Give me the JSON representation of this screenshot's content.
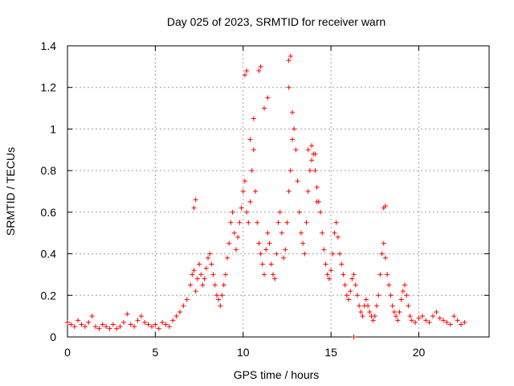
{
  "chart_data": {
    "type": "scatter",
    "title": "Day 025 of 2023, SRMTID for receiver warn",
    "xlabel": "GPS time / hours",
    "ylabel": "SRMTID / TECUs",
    "xlim": [
      0,
      24
    ],
    "ylim": [
      0,
      1.4
    ],
    "xticks": [
      0,
      5,
      10,
      15,
      20
    ],
    "xtick_labels": [
      "0",
      "5",
      "10",
      "15",
      "20"
    ],
    "yticks": [
      0,
      0.2,
      0.4,
      0.6,
      0.8,
      1.0,
      1.2,
      1.4
    ],
    "ytick_labels": [
      "0",
      "0.2",
      "0.4",
      "0.6",
      "0.8",
      "1",
      "1.2",
      "1.4"
    ],
    "grid": true,
    "marker": "+",
    "series": [
      {
        "name": "SRMTID",
        "color": "#ff0000",
        "x": [
          0.0,
          0.2,
          0.4,
          0.6,
          0.8,
          1.0,
          1.2,
          1.4,
          1.6,
          1.8,
          2.0,
          2.2,
          2.4,
          2.6,
          2.8,
          3.0,
          3.2,
          3.4,
          3.6,
          3.8,
          4.0,
          4.2,
          4.4,
          4.6,
          4.8,
          5.0,
          5.2,
          5.4,
          5.6,
          5.8,
          6.0,
          6.2,
          6.4,
          6.6,
          6.8,
          7.0,
          7.1,
          7.2,
          7.3,
          7.4,
          7.5,
          7.6,
          7.7,
          7.8,
          7.9,
          8.0,
          8.1,
          8.2,
          8.3,
          8.4,
          8.5,
          8.6,
          8.7,
          8.8,
          8.9,
          9.0,
          9.1,
          9.2,
          9.3,
          9.4,
          9.5,
          9.6,
          9.7,
          9.8,
          9.9,
          10.0,
          10.1,
          10.2,
          10.3,
          10.4,
          10.5,
          10.6,
          10.7,
          10.8,
          10.9,
          11.0,
          11.1,
          11.2,
          11.3,
          11.4,
          11.5,
          11.6,
          11.7,
          11.8,
          11.9,
          12.0,
          12.1,
          12.2,
          12.3,
          12.4,
          12.5,
          12.6,
          12.7,
          12.8,
          12.9,
          13.0,
          13.1,
          13.2,
          13.3,
          13.4,
          13.5,
          13.6,
          13.7,
          13.8,
          13.9,
          14.0,
          14.1,
          14.2,
          14.3,
          14.4,
          14.5,
          14.6,
          14.7,
          14.8,
          14.9,
          15.0,
          15.1,
          15.2,
          15.3,
          15.4,
          15.5,
          15.6,
          15.7,
          15.8,
          15.9,
          16.0,
          16.1,
          16.2,
          16.3,
          16.4,
          16.5,
          16.6,
          16.7,
          16.8,
          16.9,
          17.0,
          17.1,
          17.2,
          17.3,
          17.4,
          17.5,
          17.6,
          17.7,
          17.8,
          17.9,
          18.0,
          18.1,
          18.2,
          18.3,
          18.4,
          18.5,
          18.6,
          18.7,
          18.8,
          18.9,
          19.0,
          19.1,
          19.2,
          19.3,
          19.4,
          19.5,
          19.6,
          19.8,
          20.0,
          20.2,
          20.4,
          20.6,
          20.8,
          21.0,
          21.2,
          21.4,
          21.6,
          21.8,
          22.0,
          22.2,
          22.4,
          22.6,
          7.2,
          7.3,
          10.1,
          10.2,
          10.9,
          11.0,
          12.6,
          12.7,
          12.6,
          12.8,
          18.0,
          18.1,
          13.7,
          13.9,
          14.1,
          14.2,
          10.4,
          10.6,
          11.2,
          11.4,
          16.3
        ],
        "y": [
          0.07,
          0.06,
          0.05,
          0.08,
          0.06,
          0.05,
          0.07,
          0.1,
          0.05,
          0.04,
          0.06,
          0.05,
          0.04,
          0.06,
          0.04,
          0.05,
          0.07,
          0.11,
          0.06,
          0.05,
          0.08,
          0.1,
          0.07,
          0.06,
          0.05,
          0.06,
          0.04,
          0.07,
          0.06,
          0.05,
          0.08,
          0.1,
          0.12,
          0.15,
          0.18,
          0.25,
          0.3,
          0.32,
          0.22,
          0.28,
          0.35,
          0.3,
          0.25,
          0.28,
          0.33,
          0.38,
          0.4,
          0.35,
          0.3,
          0.25,
          0.2,
          0.18,
          0.15,
          0.2,
          0.25,
          0.3,
          0.38,
          0.45,
          0.55,
          0.6,
          0.5,
          0.42,
          0.48,
          0.55,
          0.62,
          0.7,
          0.75,
          0.6,
          0.55,
          0.65,
          0.8,
          0.9,
          0.7,
          0.55,
          0.45,
          0.4,
          0.35,
          0.3,
          0.42,
          0.5,
          0.45,
          0.35,
          0.3,
          0.28,
          0.4,
          0.55,
          0.6,
          0.5,
          0.38,
          0.42,
          0.55,
          0.7,
          0.8,
          0.95,
          1.0,
          0.9,
          0.75,
          0.6,
          0.5,
          0.45,
          0.4,
          0.55,
          0.7,
          0.8,
          0.85,
          0.88,
          0.8,
          0.72,
          0.65,
          0.6,
          0.5,
          0.42,
          0.35,
          0.3,
          0.28,
          0.32,
          0.4,
          0.5,
          0.55,
          0.48,
          0.4,
          0.35,
          0.3,
          0.25,
          0.2,
          0.18,
          0.22,
          0.28,
          0.3,
          0.25,
          0.2,
          0.15,
          0.12,
          0.1,
          0.15,
          0.18,
          0.15,
          0.12,
          0.1,
          0.08,
          0.1,
          0.15,
          0.2,
          0.3,
          0.4,
          0.45,
          0.38,
          0.3,
          0.25,
          0.2,
          0.15,
          0.12,
          0.1,
          0.08,
          0.12,
          0.18,
          0.22,
          0.25,
          0.2,
          0.15,
          0.1,
          0.08,
          0.07,
          0.09,
          0.1,
          0.08,
          0.07,
          0.1,
          0.12,
          0.09,
          0.08,
          0.07,
          0.06,
          0.1,
          0.08,
          0.06,
          0.07,
          0.62,
          0.66,
          1.26,
          1.28,
          1.28,
          1.3,
          1.33,
          1.35,
          1.2,
          1.08,
          0.62,
          0.63,
          0.9,
          0.92,
          0.88,
          0.65,
          0.95,
          1.05,
          1.1,
          1.15,
          0.0
        ]
      }
    ]
  }
}
